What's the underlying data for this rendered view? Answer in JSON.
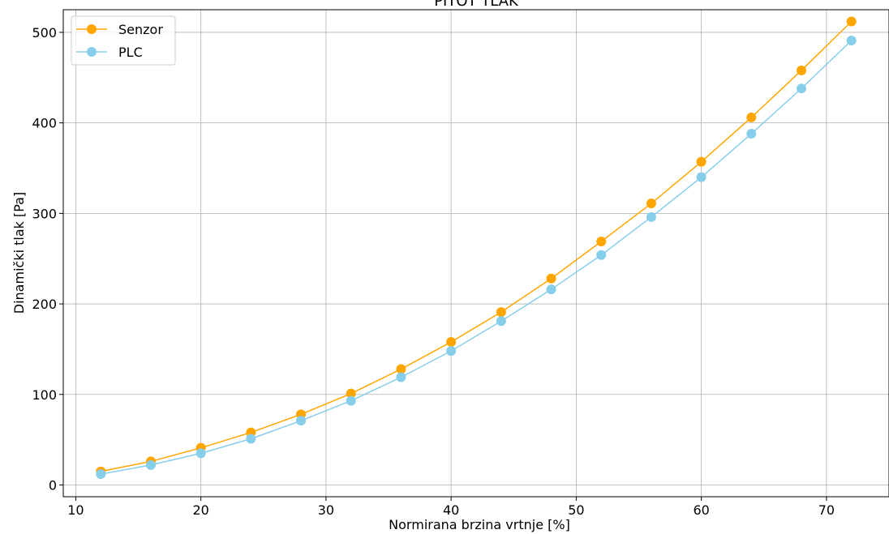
{
  "chart_data": {
    "type": "line",
    "title": "PITOT TLAK",
    "xlabel": "Normirana brzina vrtnje [%]",
    "ylabel": "Dinamički tlak [Pa]",
    "xlim": [
      9.0,
      75.0
    ],
    "ylim": [
      -13,
      525
    ],
    "xticks": [
      10,
      20,
      30,
      40,
      50,
      60,
      70
    ],
    "yticks": [
      0,
      100,
      200,
      300,
      400,
      500
    ],
    "grid": true,
    "legend_position": "top-left",
    "x": [
      12,
      16,
      20,
      24,
      28,
      32,
      36,
      40,
      44,
      48,
      52,
      56,
      60,
      64,
      68,
      72
    ],
    "series": [
      {
        "name": "Senzor",
        "color": "#ffa500",
        "marker": "circle",
        "values": [
          15,
          26,
          41,
          58,
          78,
          101,
          128,
          158,
          191,
          228,
          269,
          311,
          357,
          406,
          458,
          512
        ]
      },
      {
        "name": "PLC",
        "color": "#87ceeb",
        "marker": "circle",
        "values": [
          12,
          22,
          35,
          51,
          71,
          93,
          119,
          148,
          181,
          216,
          254,
          296,
          340,
          388,
          438,
          491
        ]
      }
    ]
  }
}
